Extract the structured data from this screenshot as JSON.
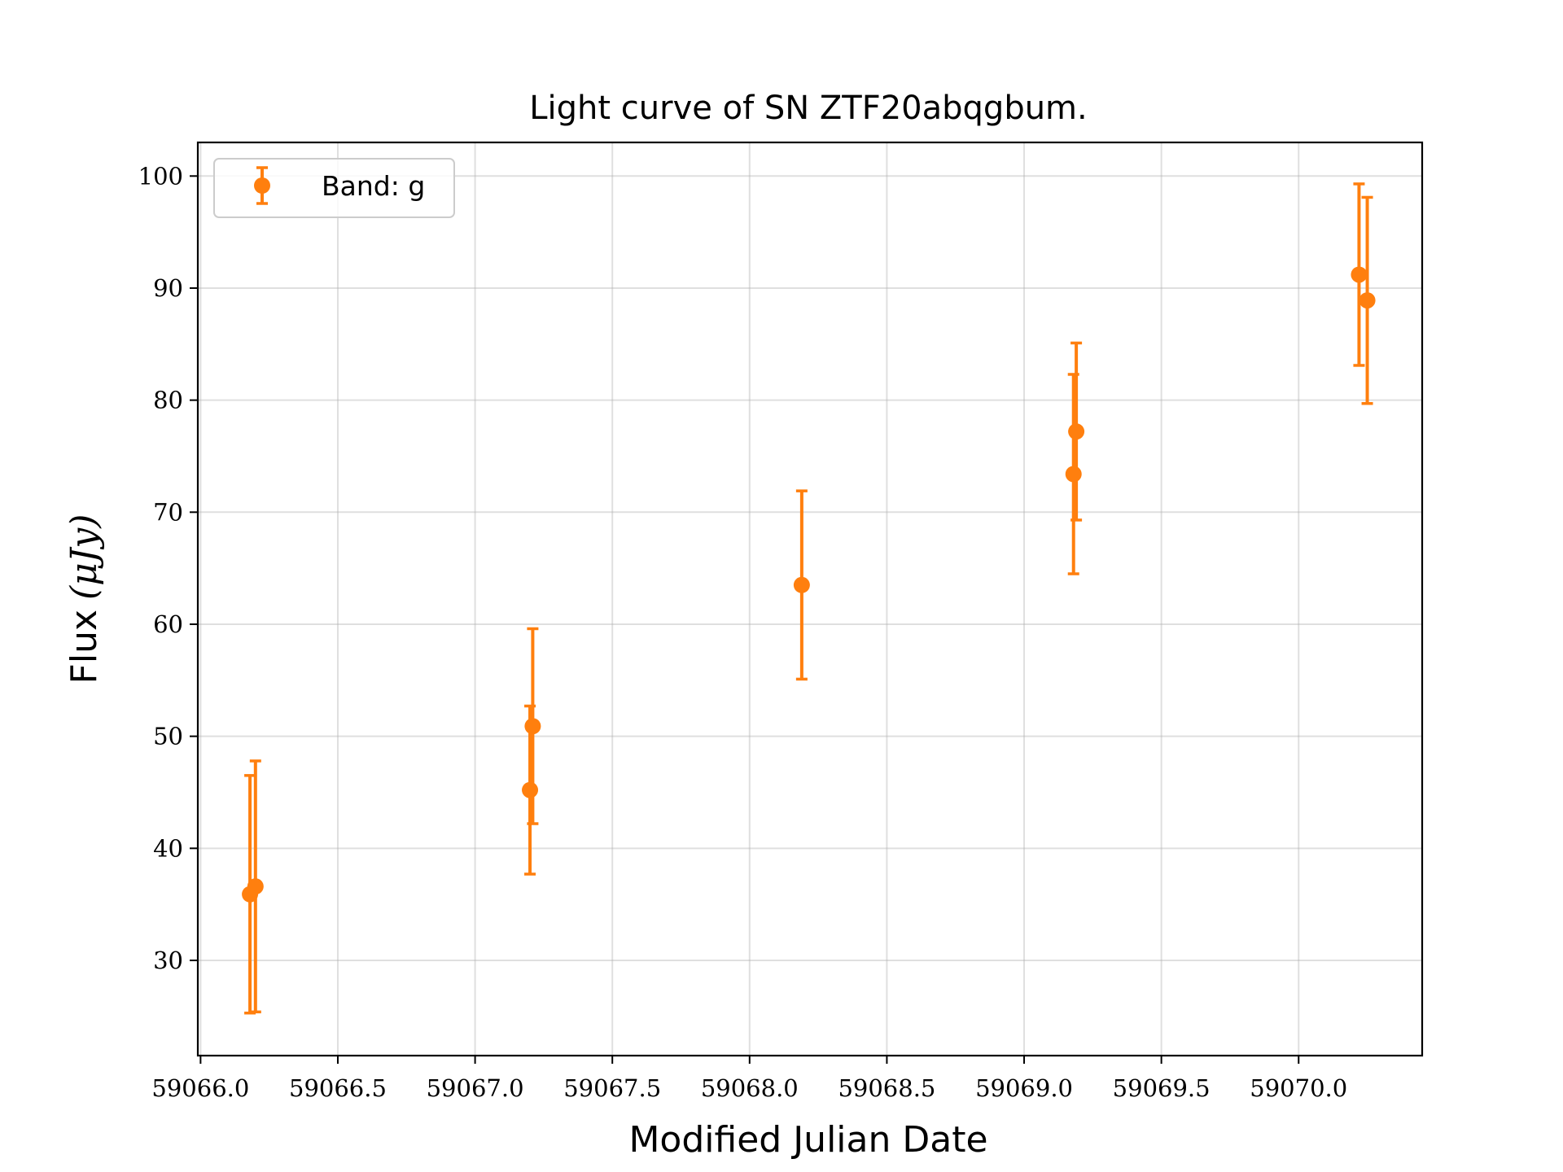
{
  "chart_data": {
    "type": "scatter",
    "title": "Light curve of SN ZTF20abqgbum.",
    "xlabel": "Modified Julian Date",
    "ylabel_text": "Flux",
    "ylabel_unit": "(μJy)",
    "xlim": [
      59065.99,
      59070.45
    ],
    "ylim": [
      21.5,
      103
    ],
    "xticks": [
      59066.0,
      59066.5,
      59067.0,
      59067.5,
      59068.0,
      59068.5,
      59069.0,
      59069.5,
      59070.0
    ],
    "xtick_labels": [
      "59066.0",
      "59066.5",
      "59067.0",
      "59067.5",
      "59068.0",
      "59068.5",
      "59069.0",
      "59069.5",
      "59070.0"
    ],
    "yticks": [
      30,
      40,
      50,
      60,
      70,
      80,
      90,
      100
    ],
    "ytick_labels": [
      "30",
      "40",
      "50",
      "60",
      "70",
      "80",
      "90",
      "100"
    ],
    "grid": true,
    "legend_position": "top-left",
    "series": [
      {
        "name": "Band: g",
        "color": "#ff7f0e",
        "points": [
          {
            "x": 59066.18,
            "y": 35.9,
            "err": 10.6
          },
          {
            "x": 59066.2,
            "y": 36.6,
            "err": 11.2
          },
          {
            "x": 59067.2,
            "y": 45.2,
            "err": 7.5
          },
          {
            "x": 59067.21,
            "y": 50.9,
            "err": 8.7
          },
          {
            "x": 59068.19,
            "y": 63.5,
            "err": 8.4
          },
          {
            "x": 59069.18,
            "y": 73.4,
            "err": 8.9
          },
          {
            "x": 59069.19,
            "y": 77.2,
            "err": 7.9
          },
          {
            "x": 59070.22,
            "y": 91.2,
            "err": 8.1
          },
          {
            "x": 59070.25,
            "y": 88.9,
            "err": 9.2
          }
        ]
      }
    ]
  }
}
